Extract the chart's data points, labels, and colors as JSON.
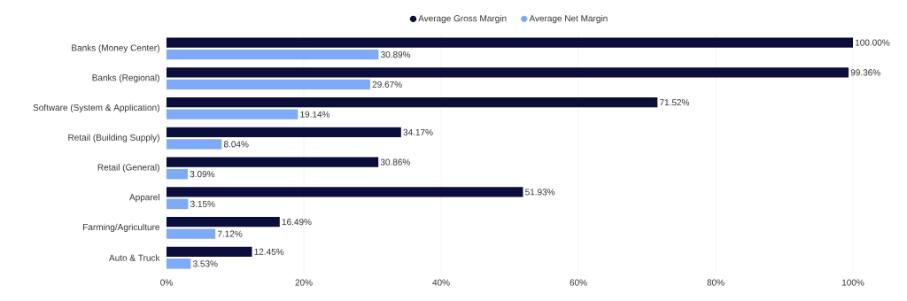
{
  "chart_data": {
    "type": "bar",
    "orientation": "horizontal",
    "categories": [
      "Banks (Money Center)",
      "Banks (Regional)",
      "Software (System & Application)",
      "Retail (Building Supply)",
      "Retail (General)",
      "Apparel",
      "Farming/Agriculture",
      "Auto & Truck"
    ],
    "series": [
      {
        "name": "Average Gross Margin",
        "color": "#0b0d3a",
        "values": [
          100,
          99.36,
          71.52,
          34.17,
          30.86,
          51.93,
          16.49,
          12.45
        ],
        "value_labels": [
          "100.00%",
          "99.36%",
          "71.52%",
          "34.17%",
          "30.86%",
          "51.93%",
          "16.49%",
          "12.45%"
        ]
      },
      {
        "name": "Average Net Margin",
        "color": "#7eaaf7",
        "values": [
          30.89,
          29.67,
          19.14,
          8.04,
          3.09,
          3.15,
          7.12,
          3.53
        ],
        "value_labels": [
          "30.89%",
          "29.67%",
          "19.14%",
          "8.04%",
          "3.09%",
          "3.15%",
          "7.12%",
          "3.53%"
        ]
      }
    ],
    "xlim": [
      0,
      100
    ],
    "xticks": [
      {
        "value": 0,
        "label": "0%"
      },
      {
        "value": 20,
        "label": "20%"
      },
      {
        "value": 40,
        "label": "40%"
      },
      {
        "value": 60,
        "label": "60%"
      },
      {
        "value": 80,
        "label": "80%"
      },
      {
        "value": 100,
        "label": "100%"
      }
    ],
    "grid": "x",
    "legend": "top"
  }
}
